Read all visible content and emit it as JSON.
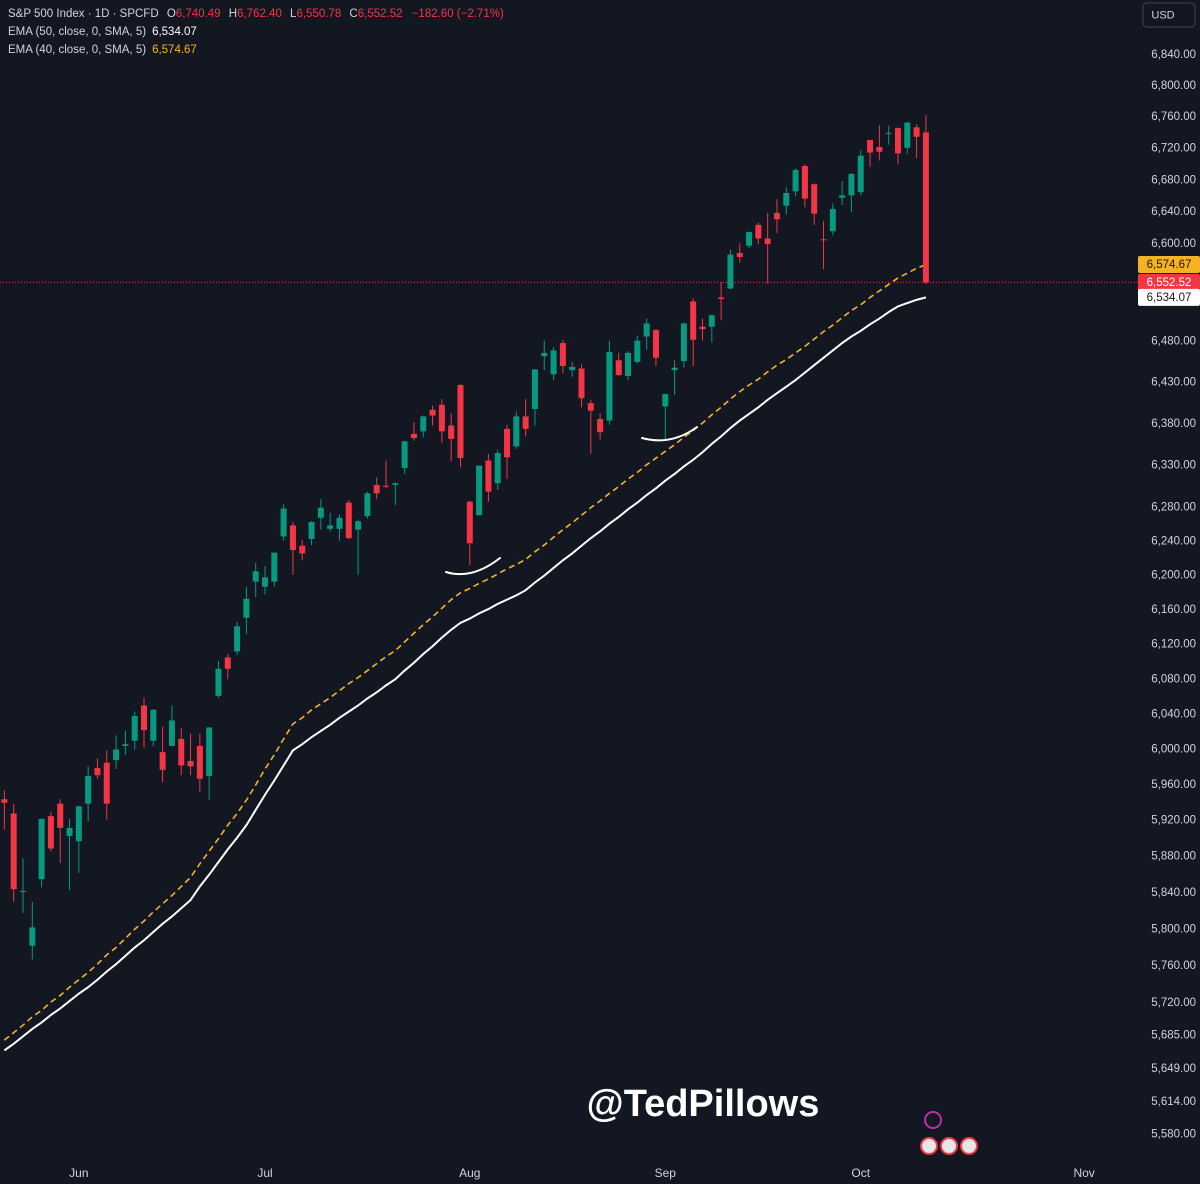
{
  "header": {
    "title": "S&P 500 Index · 1D · SPCFD",
    "fields": [
      {
        "key": "O",
        "label": "6,740.49"
      },
      {
        "key": "H",
        "label": "6,762.40"
      },
      {
        "key": "L",
        "label": "6,550.78"
      },
      {
        "key": "C",
        "label": "6,552.52"
      }
    ],
    "change": "−182.60 (−2.71%)"
  },
  "watermark": "@TedPillows",
  "chart_data": {
    "type": "candlestick",
    "axis_unit": "USD",
    "log_scale": true,
    "up_color": "#089981",
    "down_color": "#f23645",
    "last_label": "6,552.52",
    "xlim": [
      -0.47,
      122
    ],
    "xticks": [
      {
        "value": 8,
        "label": "Jun"
      },
      {
        "value": 28,
        "label": "Jul"
      },
      {
        "value": 50,
        "label": "Aug"
      },
      {
        "value": 71,
        "label": "Sep"
      },
      {
        "value": 92,
        "label": "Oct"
      },
      {
        "value": 116,
        "label": "Nov"
      }
    ],
    "ylim": [
      5553,
      6911
    ],
    "yticks": [
      {
        "value": 6840,
        "label": "6,840.00"
      },
      {
        "value": 6800,
        "label": "6,800.00"
      },
      {
        "value": 6760,
        "label": "6,760.00"
      },
      {
        "value": 6720,
        "label": "6,720.00"
      },
      {
        "value": 6680,
        "label": "6,680.00"
      },
      {
        "value": 6640,
        "label": "6,640.00"
      },
      {
        "value": 6600,
        "label": "6,600.00"
      },
      {
        "value": 6480,
        "label": "6,480.00"
      },
      {
        "value": 6430,
        "label": "6,430.00"
      },
      {
        "value": 6380,
        "label": "6,380.00"
      },
      {
        "value": 6330,
        "label": "6,330.00"
      },
      {
        "value": 6280,
        "label": "6,280.00"
      },
      {
        "value": 6240,
        "label": "6,240.00"
      },
      {
        "value": 6200,
        "label": "6,200.00"
      },
      {
        "value": 6160,
        "label": "6,160.00"
      },
      {
        "value": 6120,
        "label": "6,120.00"
      },
      {
        "value": 6080,
        "label": "6,080.00"
      },
      {
        "value": 6040,
        "label": "6,040.00"
      },
      {
        "value": 6000,
        "label": "6,000.00"
      },
      {
        "value": 5960,
        "label": "5,960.00"
      },
      {
        "value": 5920,
        "label": "5,920.00"
      },
      {
        "value": 5880,
        "label": "5,880.00"
      },
      {
        "value": 5840,
        "label": "5,840.00"
      },
      {
        "value": 5800,
        "label": "5,800.00"
      },
      {
        "value": 5760,
        "label": "5,760.00"
      },
      {
        "value": 5720,
        "label": "5,720.00"
      },
      {
        "value": 5685,
        "label": "5,685.00"
      },
      {
        "value": 5649,
        "label": "5,649.00"
      },
      {
        "value": 5614,
        "label": "5,614.00"
      },
      {
        "value": 5580,
        "label": "5,580.00"
      }
    ],
    "open": [
      5944,
      5928,
      5842,
      5782,
      5855,
      5925,
      5939,
      5903,
      5897,
      5939,
      5979,
      5985,
      5988,
      6004,
      6010,
      6050,
      6010,
      5997,
      6004,
      6012,
      5987,
      6004,
      5970,
      6061,
      6105,
      6112,
      6151,
      6193,
      6187,
      6193,
      6246,
      6259,
      6235,
      6243,
      6268,
      6255,
      6255,
      6286,
      6254,
      6270,
      6307,
      6306,
      6307,
      6327,
      6368,
      6371,
      6397,
      6403,
      6378,
      6427,
      6287,
      6271,
      6336,
      6309,
      6374,
      6353,
      6389,
      6398,
      6462,
      6440,
      6478,
      6445,
      6447,
      6405,
      6386,
      6384,
      6457,
      6438,
      6455,
      6486,
      6494,
      6401,
      6445,
      6456,
      6529,
      6498,
      6498,
      6534,
      6545,
      6589,
      6598,
      6624,
      6607,
      6639,
      6648,
      6666,
      6698,
      6675,
      6606,
      6616,
      6658,
      6661,
      6665,
      6731,
      6722,
      6740,
      6746,
      6721,
      6747,
      6740.49
    ],
    "high": [
      5954,
      5939,
      5878,
      5830,
      5922,
      5930,
      5944,
      5922,
      5937,
      5981,
      5990,
      5999,
      6016,
      6021,
      6043,
      6059,
      6046,
      6026,
      6050,
      6024,
      6018,
      6018,
      6025,
      6101,
      6109,
      6146,
      6187,
      6215,
      6211,
      6227,
      6284,
      6263,
      6242,
      6264,
      6290,
      6274,
      6272,
      6289,
      6266,
      6299,
      6316,
      6336,
      6310,
      6360,
      6382,
      6390,
      6402,
      6410,
      6393,
      6428,
      6288,
      6330,
      6344,
      6349,
      6379,
      6395,
      6410,
      6446,
      6481,
      6473,
      6482,
      6455,
      6452,
      6409,
      6393,
      6481,
      6466,
      6468,
      6487,
      6508,
      6495,
      6416,
      6457,
      6503,
      6533,
      6508,
      6513,
      6553,
      6593,
      6601,
      6616,
      6627,
      6639,
      6656,
      6671,
      6695,
      6700,
      6676,
      6629,
      6651,
      6679,
      6689,
      6718,
      6731,
      6750,
      6749,
      6747,
      6754,
      6751,
      6762.4
    ],
    "low": [
      5910,
      5830,
      5818,
      5767,
      5846,
      5886,
      5873,
      5843,
      5862,
      5919,
      5967,
      5921,
      5978,
      5994,
      6000,
      6002,
      6004,
      5963,
      6004,
      5971,
      5971,
      5952,
      5943,
      6059,
      6080,
      6108,
      6132,
      6175,
      6178,
      6187,
      6241,
      6201,
      6218,
      6236,
      6254,
      6252,
      6241,
      6243,
      6201,
      6267,
      6290,
      6303,
      6283,
      6320,
      6360,
      6364,
      6378,
      6357,
      6335,
      6328,
      6212,
      6271,
      6287,
      6301,
      6314,
      6350,
      6365,
      6378,
      6445,
      6433,
      6441,
      6437,
      6400,
      6344,
      6361,
      6379,
      6438,
      6433,
      6453,
      6470,
      6450,
      6361,
      6415,
      6448,
      6450,
      6481,
      6479,
      6506,
      6544,
      6577,
      6595,
      6600,
      6551,
      6614,
      6637,
      6660,
      6646,
      6624,
      6569,
      6611,
      6649,
      6640,
      6661,
      6697,
      6705,
      6725,
      6700,
      6713,
      6708,
      6550.78
    ],
    "close": [
      5940,
      5844,
      5842,
      5802,
      5922,
      5889,
      5912,
      5912,
      5936,
      5970,
      5971,
      5939,
      6000,
      6006,
      6038,
      6022,
      6045,
      5977,
      6033,
      5982,
      5981,
      5967,
      6025,
      6092,
      6092,
      6141,
      6173,
      6205,
      6198,
      6227,
      6279,
      6230,
      6226,
      6263,
      6280,
      6259,
      6268,
      6244,
      6264,
      6297,
      6297,
      6305,
      6309,
      6359,
      6363,
      6389,
      6390,
      6371,
      6362,
      6339,
      6238,
      6330,
      6299,
      6345,
      6340,
      6389,
      6374,
      6446,
      6466,
      6469,
      6450,
      6449,
      6411,
      6396,
      6370,
      6467,
      6439,
      6466,
      6481,
      6502,
      6460,
      6416,
      6448,
      6502,
      6482,
      6495,
      6512,
      6532,
      6587,
      6584,
      6615,
      6607,
      6600,
      6631,
      6664,
      6693,
      6657,
      6638,
      6605,
      6644,
      6661,
      6688,
      6711,
      6715,
      6716,
      6740,
      6714,
      6753,
      6735,
      6552.52
    ],
    "lines": [
      {
        "name": "EMA (50, close, 0, SMA, 5)",
        "color": "#ffffff",
        "dashed": false,
        "value_label": "6,534.07",
        "values": [
          5669,
          5676,
          5684,
          5692,
          5699,
          5707,
          5714,
          5722,
          5730,
          5737,
          5745,
          5754,
          5762,
          5771,
          5780,
          5788,
          5797,
          5806,
          5814,
          5823,
          5832,
          5847,
          5860,
          5874,
          5888,
          5901,
          5915,
          5932,
          5949,
          5965,
          5982,
          5999,
          6006,
          6014,
          6021,
          6028,
          6036,
          6043,
          6050,
          6058,
          6065,
          6073,
          6080,
          6090,
          6099,
          6109,
          6118,
          6128,
          6137,
          6145,
          6150,
          6156,
          6161,
          6167,
          6172,
          6177,
          6183,
          6192,
          6200,
          6209,
          6218,
          6226,
          6235,
          6244,
          6252,
          6261,
          6269,
          6278,
          6286,
          6295,
          6303,
          6312,
          6320,
          6329,
          6337,
          6346,
          6356,
          6365,
          6375,
          6384,
          6392,
          6400,
          6409,
          6417,
          6425,
          6433,
          6442,
          6451,
          6460,
          6469,
          6478,
          6486,
          6493,
          6501,
          6508,
          6516,
          6523,
          6527,
          6531,
          6534.07
        ]
      },
      {
        "name": "EMA (40, close, 0, SMA, 5)",
        "color": "#f5b324",
        "dashed": true,
        "value_label": "6,574.67",
        "values": [
          5680,
          5688,
          5696,
          5705,
          5712,
          5721,
          5728,
          5737,
          5745,
          5753,
          5762,
          5772,
          5780,
          5790,
          5800,
          5809,
          5819,
          5828,
          5837,
          5847,
          5857,
          5872,
          5886,
          5900,
          5915,
          5928,
          5943,
          5960,
          5978,
          5994,
          6012,
          6029,
          6036,
          6045,
          6052,
          6059,
          6067,
          6075,
          6082,
          6090,
          6098,
          6106,
          6113,
          6123,
          6133,
          6143,
          6152,
          6162,
          6172,
          6180,
          6185,
          6191,
          6196,
          6202,
          6208,
          6213,
          6219,
          6228,
          6236,
          6245,
          6254,
          6262,
          6271,
          6280,
          6288,
          6297,
          6305,
          6314,
          6322,
          6331,
          6339,
          6347,
          6355,
          6364,
          6372,
          6381,
          6391,
          6400,
          6410,
          6419,
          6427,
          6434,
          6443,
          6451,
          6458,
          6466,
          6474,
          6483,
          6492,
          6500,
          6509,
          6518,
          6525,
          6534,
          6542,
          6550,
          6558,
          6564,
          6570,
          6574.67
        ]
      }
    ]
  }
}
